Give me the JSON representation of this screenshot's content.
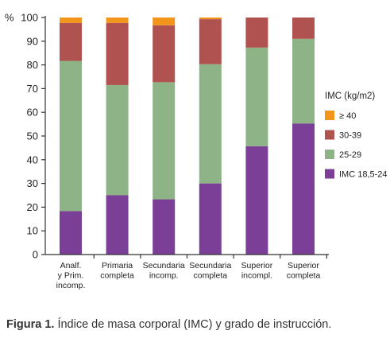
{
  "chart_data": {
    "type": "bar",
    "stacked": true,
    "ylabel": "%",
    "ylim": [
      0,
      100
    ],
    "yticks": [
      0,
      10,
      20,
      30,
      40,
      50,
      60,
      70,
      80,
      90,
      100
    ],
    "categories": [
      [
        "Analf.",
        "y Prim.",
        "incomp."
      ],
      [
        "Primaria",
        "completa"
      ],
      [
        "Secundaria",
        "incomp."
      ],
      [
        "Secundaria",
        "completa"
      ],
      [
        "Superior",
        "incompl."
      ],
      [
        "Superior",
        "completa"
      ]
    ],
    "series": [
      {
        "name": "IMC 18,5-24",
        "color": "#7b3f98",
        "values": [
          18.3,
          25,
          23.3,
          30,
          45.7,
          55.3
        ]
      },
      {
        "name": "25-29",
        "color": "#8db387",
        "values": [
          63.4,
          46.5,
          49.4,
          50.3,
          41.6,
          35.7
        ]
      },
      {
        "name": "30-39",
        "color": "#b0524f",
        "values": [
          16,
          26.2,
          24,
          19,
          12.7,
          9
        ]
      },
      {
        "name": "≥ 40",
        "color": "#f2951b",
        "values": [
          2.3,
          2.3,
          3.3,
          0.7,
          0,
          0
        ]
      }
    ],
    "legend": {
      "title": "IMC (kg/m2)",
      "position": "right",
      "order": [
        "≥ 40",
        "30-39",
        "25-29",
        "IMC 18,5-24"
      ]
    },
    "grid": false
  },
  "caption": {
    "label": "Figura 1.",
    "text": " Índice de masa corporal (IMC) y grado de instrucción."
  }
}
